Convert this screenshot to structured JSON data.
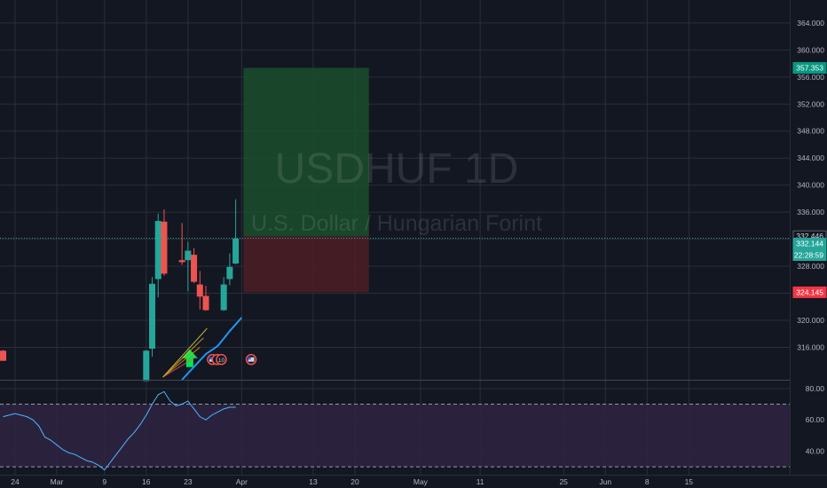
{
  "chart_data": {
    "type": "candlestick",
    "symbol": "USDHUF",
    "interval": "1D",
    "description": "U.S. Dollar / Hungarian Forint",
    "x_ticks": [
      {
        "label": "24",
        "day": -7
      },
      {
        "label": "Mar",
        "day": 0
      },
      {
        "label": "9",
        "day": 8
      },
      {
        "label": "16",
        "day": 15
      },
      {
        "label": "23",
        "day": 22
      },
      {
        "label": "Apr",
        "day": 31
      },
      {
        "label": "13",
        "day": 43
      },
      {
        "label": "20",
        "day": 50
      },
      {
        "label": "May",
        "day": 61
      },
      {
        "label": "11",
        "day": 71
      },
      {
        "label": "25",
        "day": 85
      },
      {
        "label": "Jun",
        "day": 92
      },
      {
        "label": "8",
        "day": 99
      },
      {
        "label": "15",
        "day": 106
      }
    ],
    "price_ticks": [
      316,
      320,
      324,
      328,
      332,
      336,
      340,
      344,
      348,
      352,
      356,
      360,
      364
    ],
    "price_tick_labels": [
      "316.000",
      "320.000",
      "324.000",
      "328.000",
      "332.000",
      "336.000",
      "340.000",
      "344.000",
      "348.000",
      "352.000",
      "356.000",
      "360.000",
      "364.000"
    ],
    "price_range": [
      311.2,
      367.4
    ],
    "candles": [
      {
        "day": -9,
        "open": 315.5,
        "high": 315.6,
        "low": 314,
        "close": 314
      },
      {
        "day": 15,
        "open": 311,
        "high": 315.6,
        "low": 311,
        "close": 315.5
      },
      {
        "day": 16,
        "open": 315.8,
        "high": 326.4,
        "low": 314.6,
        "close": 325.4
      },
      {
        "day": 17,
        "open": 326.1,
        "high": 335.8,
        "low": 323.4,
        "close": 334.7
      },
      {
        "day": 18,
        "open": 334.6,
        "high": 336.4,
        "low": 326.6,
        "close": 326.9
      },
      {
        "day": 21,
        "open": 328.9,
        "high": 334.4,
        "low": 328.2,
        "close": 328.6
      },
      {
        "day": 22,
        "open": 328.9,
        "high": 331.6,
        "low": 324.3,
        "close": 330.3
      },
      {
        "day": 23,
        "open": 329.7,
        "high": 330.7,
        "low": 325.5,
        "close": 325.7
      },
      {
        "day": 24,
        "open": 325.3,
        "high": 327.3,
        "low": 321.6,
        "close": 323.5
      },
      {
        "day": 25,
        "open": 323.6,
        "high": 325.1,
        "low": 321.4,
        "close": 321.5
      },
      {
        "day": 28,
        "open": 321.5,
        "high": 326.4,
        "low": 321.4,
        "close": 325.3
      },
      {
        "day": 29,
        "open": 326.1,
        "high": 329.9,
        "low": 325.2,
        "close": 327.9
      },
      {
        "day": 30,
        "open": 328.4,
        "high": 337.9,
        "low": 328.3,
        "close": 332.1
      }
    ],
    "moving_average": [
      {
        "day": 21,
        "value": 311.2
      },
      {
        "day": 23,
        "value": 313.1
      },
      {
        "day": 25,
        "value": 315
      },
      {
        "day": 27,
        "value": 316.2
      },
      {
        "day": 29,
        "value": 318.4
      },
      {
        "day": 31,
        "value": 320.4
      }
    ],
    "current_price": 332.144,
    "countdown": "22:28:59",
    "upper_marker": 332.446,
    "position": {
      "start_day": 31,
      "end_day": 51,
      "entry": 332.446,
      "target": 357.353,
      "stop": 324.145
    },
    "rsi": {
      "ticks": [
        40,
        60,
        80
      ],
      "tick_labels": [
        "40.00",
        "60.00",
        "80.00"
      ],
      "range": [
        25,
        85
      ],
      "upper_band": 70,
      "lower_band": 30,
      "values": [
        {
          "day": -9,
          "value": 62
        },
        {
          "day": -7,
          "value": 64
        },
        {
          "day": -5,
          "value": 62
        },
        {
          "day": -4,
          "value": 60
        },
        {
          "day": -3,
          "value": 56
        },
        {
          "day": -2,
          "value": 49
        },
        {
          "day": -1,
          "value": 47
        },
        {
          "day": 0,
          "value": 44
        },
        {
          "day": 1,
          "value": 41
        },
        {
          "day": 2,
          "value": 39
        },
        {
          "day": 3,
          "value": 38
        },
        {
          "day": 4,
          "value": 36
        },
        {
          "day": 5,
          "value": 34
        },
        {
          "day": 6,
          "value": 33
        },
        {
          "day": 7,
          "value": 31
        },
        {
          "day": 8,
          "value": 28
        },
        {
          "day": 9,
          "value": 33
        },
        {
          "day": 10,
          "value": 38
        },
        {
          "day": 11,
          "value": 43
        },
        {
          "day": 12,
          "value": 48
        },
        {
          "day": 13,
          "value": 52
        },
        {
          "day": 14,
          "value": 57
        },
        {
          "day": 15,
          "value": 63
        },
        {
          "day": 16,
          "value": 70
        },
        {
          "day": 17,
          "value": 76
        },
        {
          "day": 18,
          "value": 78
        },
        {
          "day": 19,
          "value": 72
        },
        {
          "day": 20,
          "value": 69
        },
        {
          "day": 21,
          "value": 70
        },
        {
          "day": 22,
          "value": 72
        },
        {
          "day": 23,
          "value": 67
        },
        {
          "day": 24,
          "value": 62
        },
        {
          "day": 25,
          "value": 60
        },
        {
          "day": 26,
          "value": 63
        },
        {
          "day": 27,
          "value": 65
        },
        {
          "day": 28,
          "value": 67
        },
        {
          "day": 29,
          "value": 68
        },
        {
          "day": 30,
          "value": 68
        }
      ]
    },
    "colors": {
      "background": "#131722",
      "grid": "#2a2e39",
      "up": "#26a69a",
      "down": "#ef5350",
      "ma": "#2196f3",
      "rsi_line": "#4db6ff",
      "rsi_fill": "#2d2440",
      "rsi_band": "#9598a1",
      "target_zone": "#1b4d2b",
      "stop_zone": "#4d1e24",
      "target_label": "#089981",
      "stop_label": "#f23645",
      "price_label": "#26a69a",
      "text": "#b2b5be",
      "arrow": "#00e64d",
      "event_ring": "#ef5350"
    }
  }
}
